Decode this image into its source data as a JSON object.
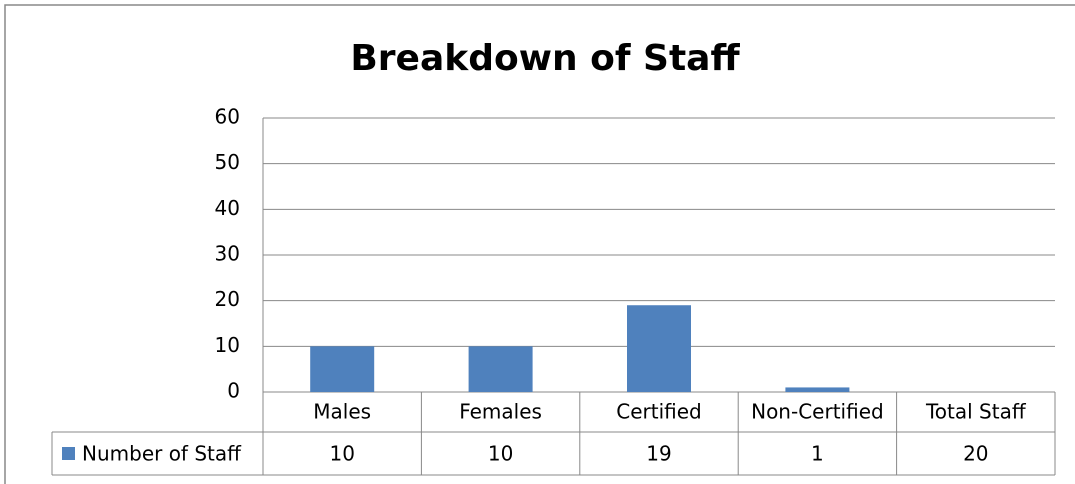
{
  "chart_data": {
    "type": "bar",
    "title": "Breakdown of Staff",
    "categories": [
      "Males",
      "Females",
      "Certified",
      "Non-Certified",
      "Total Staff"
    ],
    "series": [
      {
        "name": "Number of Staff",
        "color": "#4f81bd",
        "values": [
          10,
          10,
          19,
          1,
          null
        ]
      }
    ],
    "data_table": [
      10,
      10,
      19,
      1,
      20
    ],
    "ylim": [
      0,
      60
    ],
    "yticks": [
      0,
      10,
      20,
      30,
      40,
      50,
      60
    ],
    "grid": true
  }
}
